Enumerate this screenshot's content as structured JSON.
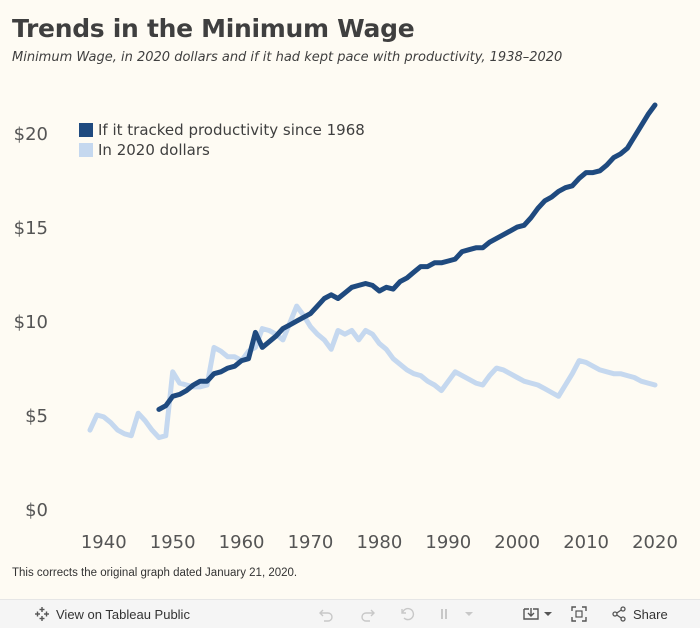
{
  "header": {
    "title": "Trends in the Minimum Wage",
    "subtitle": "Minimum Wage, in 2020 dollars and if it had kept pace with productivity, 1938–2020"
  },
  "footnote": "This corrects the original graph dated January 21, 2020.",
  "toolbar": {
    "view_label": "View on Tableau Public",
    "share_label": "Share"
  },
  "colors": {
    "background": "#fefbf3",
    "productivity_line": "#1f4a7f",
    "real_wage_line": "#c5d8ef",
    "text": "#3f3f3f",
    "axis_text": "#555555"
  },
  "chart_data": {
    "type": "line",
    "title": "Trends in the Minimum Wage",
    "subtitle": "Minimum Wage, in 2020 dollars and if it had kept pace with productivity, 1938–2020",
    "xlim": [
      1938,
      2020
    ],
    "ylim": [
      0,
      21.5
    ],
    "x_ticks": [
      1940,
      1950,
      1960,
      1970,
      1980,
      1990,
      2000,
      2010,
      2020
    ],
    "x_tick_labels": [
      "1940",
      "1950",
      "1960",
      "1970",
      "1980",
      "1990",
      "2000",
      "2010",
      "2020"
    ],
    "y_ticks": [
      0,
      5,
      10,
      15,
      20
    ],
    "y_tick_labels": [
      "$0",
      "$5",
      "$10",
      "$15",
      "$20"
    ],
    "grid": false,
    "legend_position": "top-left",
    "series": [
      {
        "name": "If it tracked productivity since 1968",
        "color": "#1f4a7f",
        "points": [
          [
            1948,
            5.3
          ],
          [
            1949,
            5.5
          ],
          [
            1950,
            6.0
          ],
          [
            1951,
            6.1
          ],
          [
            1952,
            6.3
          ],
          [
            1953,
            6.6
          ],
          [
            1954,
            6.8
          ],
          [
            1955,
            6.8
          ],
          [
            1956,
            7.2
          ],
          [
            1957,
            7.3
          ],
          [
            1958,
            7.5
          ],
          [
            1959,
            7.6
          ],
          [
            1960,
            7.9
          ],
          [
            1961,
            8.0
          ],
          [
            1962,
            9.4
          ],
          [
            1963,
            8.6
          ],
          [
            1964,
            8.9
          ],
          [
            1965,
            9.2
          ],
          [
            1966,
            9.6
          ],
          [
            1967,
            9.8
          ],
          [
            1968,
            10.0
          ],
          [
            1969,
            10.2
          ],
          [
            1970,
            10.4
          ],
          [
            1971,
            10.8
          ],
          [
            1972,
            11.2
          ],
          [
            1973,
            11.4
          ],
          [
            1974,
            11.2
          ],
          [
            1975,
            11.5
          ],
          [
            1976,
            11.8
          ],
          [
            1977,
            11.9
          ],
          [
            1978,
            12.0
          ],
          [
            1979,
            11.9
          ],
          [
            1980,
            11.6
          ],
          [
            1981,
            11.8
          ],
          [
            1982,
            11.7
          ],
          [
            1983,
            12.1
          ],
          [
            1984,
            12.3
          ],
          [
            1985,
            12.6
          ],
          [
            1986,
            12.9
          ],
          [
            1987,
            12.9
          ],
          [
            1988,
            13.1
          ],
          [
            1989,
            13.1
          ],
          [
            1990,
            13.2
          ],
          [
            1991,
            13.3
          ],
          [
            1992,
            13.7
          ],
          [
            1993,
            13.8
          ],
          [
            1994,
            13.9
          ],
          [
            1995,
            13.9
          ],
          [
            1996,
            14.2
          ],
          [
            1997,
            14.4
          ],
          [
            1998,
            14.6
          ],
          [
            1999,
            14.8
          ],
          [
            2000,
            15.0
          ],
          [
            2001,
            15.1
          ],
          [
            2002,
            15.5
          ],
          [
            2003,
            16.0
          ],
          [
            2004,
            16.4
          ],
          [
            2005,
            16.6
          ],
          [
            2006,
            16.9
          ],
          [
            2007,
            17.1
          ],
          [
            2008,
            17.2
          ],
          [
            2009,
            17.6
          ],
          [
            2010,
            17.9
          ],
          [
            2011,
            17.9
          ],
          [
            2012,
            18.0
          ],
          [
            2013,
            18.3
          ],
          [
            2014,
            18.7
          ],
          [
            2015,
            18.9
          ],
          [
            2016,
            19.2
          ],
          [
            2017,
            19.8
          ],
          [
            2018,
            20.4
          ],
          [
            2019,
            21.0
          ],
          [
            2020,
            21.5
          ]
        ]
      },
      {
        "name": "In 2020 dollars",
        "color": "#c5d8ef",
        "points": [
          [
            1938,
            4.2
          ],
          [
            1939,
            5.0
          ],
          [
            1940,
            4.9
          ],
          [
            1941,
            4.6
          ],
          [
            1942,
            4.2
          ],
          [
            1943,
            4.0
          ],
          [
            1944,
            3.9
          ],
          [
            1945,
            5.1
          ],
          [
            1946,
            4.7
          ],
          [
            1947,
            4.2
          ],
          [
            1948,
            3.8
          ],
          [
            1949,
            3.9
          ],
          [
            1950,
            7.3
          ],
          [
            1951,
            6.7
          ],
          [
            1952,
            6.6
          ],
          [
            1953,
            6.5
          ],
          [
            1954,
            6.5
          ],
          [
            1955,
            6.6
          ],
          [
            1956,
            8.6
          ],
          [
            1957,
            8.4
          ],
          [
            1958,
            8.1
          ],
          [
            1959,
            8.1
          ],
          [
            1960,
            7.9
          ],
          [
            1961,
            8.4
          ],
          [
            1962,
            8.6
          ],
          [
            1963,
            9.6
          ],
          [
            1964,
            9.5
          ],
          [
            1965,
            9.3
          ],
          [
            1966,
            9.0
          ],
          [
            1967,
            9.9
          ],
          [
            1968,
            10.8
          ],
          [
            1969,
            10.3
          ],
          [
            1970,
            9.7
          ],
          [
            1971,
            9.3
          ],
          [
            1972,
            9.0
          ],
          [
            1973,
            8.5
          ],
          [
            1974,
            9.5
          ],
          [
            1975,
            9.3
          ],
          [
            1976,
            9.5
          ],
          [
            1977,
            9.0
          ],
          [
            1978,
            9.5
          ],
          [
            1979,
            9.3
          ],
          [
            1980,
            8.8
          ],
          [
            1981,
            8.5
          ],
          [
            1982,
            8.0
          ],
          [
            1983,
            7.7
          ],
          [
            1984,
            7.4
          ],
          [
            1985,
            7.2
          ],
          [
            1986,
            7.1
          ],
          [
            1987,
            6.8
          ],
          [
            1988,
            6.6
          ],
          [
            1989,
            6.3
          ],
          [
            1990,
            6.8
          ],
          [
            1991,
            7.3
          ],
          [
            1992,
            7.1
          ],
          [
            1993,
            6.9
          ],
          [
            1994,
            6.7
          ],
          [
            1995,
            6.6
          ],
          [
            1996,
            7.1
          ],
          [
            1997,
            7.5
          ],
          [
            1998,
            7.4
          ],
          [
            1999,
            7.2
          ],
          [
            2000,
            7.0
          ],
          [
            2001,
            6.8
          ],
          [
            2002,
            6.7
          ],
          [
            2003,
            6.6
          ],
          [
            2004,
            6.4
          ],
          [
            2005,
            6.2
          ],
          [
            2006,
            6.0
          ],
          [
            2007,
            6.6
          ],
          [
            2008,
            7.2
          ],
          [
            2009,
            7.9
          ],
          [
            2010,
            7.8
          ],
          [
            2011,
            7.6
          ],
          [
            2012,
            7.4
          ],
          [
            2013,
            7.3
          ],
          [
            2014,
            7.2
          ],
          [
            2015,
            7.2
          ],
          [
            2016,
            7.1
          ],
          [
            2017,
            7.0
          ],
          [
            2018,
            6.8
          ],
          [
            2019,
            6.7
          ],
          [
            2020,
            6.6
          ]
        ]
      }
    ]
  }
}
